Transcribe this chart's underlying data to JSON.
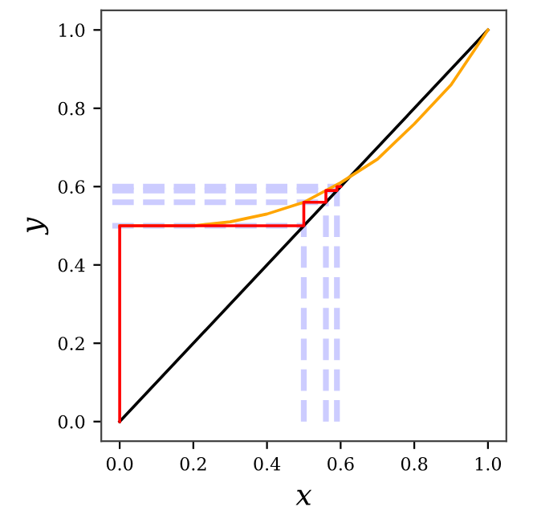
{
  "chart_data": {
    "type": "line",
    "xlabel": "x",
    "ylabel": "y",
    "xlim": [
      -0.05,
      1.05
    ],
    "ylim": [
      -0.05,
      1.05
    ],
    "xticks": [
      {
        "value": 0,
        "label": "0.0"
      },
      0.2,
      0.4,
      0.6,
      0.8,
      {
        "value": 1,
        "label": "1.0"
      }
    ],
    "yticks": [
      {
        "value": 0,
        "label": "0.0"
      },
      0.2,
      0.4,
      0.6,
      0.8,
      {
        "value": 1,
        "label": "1.0"
      }
    ],
    "grid": false,
    "legend": false,
    "series": [
      {
        "color": "#ccccff",
        "line_style": "dashed",
        "x": [
          -0.02,
          0.5
        ],
        "values": [
          0.5,
          0.5
        ]
      },
      {
        "color": "#ccccff",
        "line_style": "dashed",
        "x": [
          -0.02,
          0.56
        ],
        "values": [
          0.56,
          0.56
        ]
      },
      {
        "color": "#ccccff",
        "line_style": "dashed",
        "x": [
          -0.02,
          0.59
        ],
        "values": [
          0.59,
          0.59
        ]
      },
      {
        "color": "#ccccff",
        "line_style": "dashed",
        "x": [
          -0.02,
          0.6
        ],
        "values": [
          0.6,
          0.6
        ]
      },
      {
        "color": "#ccccff",
        "line_style": "dashed",
        "x": [
          0.5,
          0.5
        ],
        "values": [
          0,
          0.5
        ]
      },
      {
        "color": "#ccccff",
        "line_style": "dashed",
        "x": [
          0.56,
          0.56
        ],
        "values": [
          0,
          0.56
        ]
      },
      {
        "color": "#ccccff",
        "line_style": "dashed",
        "x": [
          0.59,
          0.59
        ],
        "values": [
          0,
          0.59
        ]
      },
      {
        "color": "#000000",
        "line_style": "solid",
        "x": [
          0,
          1
        ],
        "values": [
          0,
          1
        ]
      },
      {
        "color": "#ffa500",
        "line_style": "solid",
        "x": [
          0,
          0.1,
          0.2,
          0.3,
          0.4,
          0.5,
          0.6,
          0.7,
          0.8,
          0.9,
          1.0
        ],
        "values": [
          0.5,
          0.5,
          0.5,
          0.51,
          0.53,
          0.56,
          0.61,
          0.67,
          0.76,
          0.86,
          1.0
        ]
      },
      {
        "color": "#ff0000",
        "line_style": "solid",
        "x": [
          0,
          0,
          0.5,
          0.5,
          0.56,
          0.56,
          0.59,
          0.59,
          0.6
        ],
        "values": [
          0,
          0.5,
          0.5,
          0.56,
          0.56,
          0.59,
          0.59,
          0.6,
          0.6
        ]
      }
    ]
  }
}
